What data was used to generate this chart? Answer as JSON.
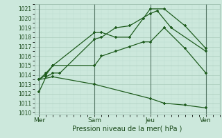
{
  "title": "Pression niveau de la mer( hPa )",
  "bg_color": "#cce8dc",
  "grid_color_major": "#aaccbb",
  "grid_color_minor": "#bbddd0",
  "line_color": "#1e5c1e",
  "ylim": [
    1009.8,
    1021.5
  ],
  "yticks": [
    1010,
    1011,
    1012,
    1013,
    1014,
    1015,
    1016,
    1017,
    1018,
    1019,
    1020,
    1021
  ],
  "xtick_labels": [
    "Mer",
    "Sam",
    "Jeu",
    "Ven"
  ],
  "xtick_positions": [
    0,
    24,
    48,
    72
  ],
  "vline_positions": [
    0,
    24,
    48,
    72
  ],
  "series": [
    {
      "x": [
        0,
        3,
        6,
        9,
        24,
        27,
        33,
        39,
        48,
        51,
        57,
        72
      ],
      "y": [
        1012.2,
        1013.8,
        1014.2,
        1014.2,
        1017.8,
        1018.0,
        1019.0,
        1019.2,
        1020.5,
        1020.8,
        1019.0,
        1016.5
      ]
    },
    {
      "x": [
        0,
        3,
        6,
        24,
        27,
        33,
        39,
        45,
        48,
        54,
        63,
        72
      ],
      "y": [
        1013.5,
        1014.2,
        1015.0,
        1018.5,
        1018.5,
        1018.0,
        1018.0,
        1020.0,
        1021.0,
        1021.0,
        1019.2,
        1016.8
      ]
    },
    {
      "x": [
        0,
        3,
        6,
        24,
        27,
        33,
        39,
        45,
        48,
        54,
        63,
        72
      ],
      "y": [
        1013.5,
        1014.0,
        1015.0,
        1015.0,
        1016.0,
        1016.5,
        1017.0,
        1017.5,
        1017.5,
        1019.0,
        1016.8,
        1014.2
      ]
    },
    {
      "x": [
        0,
        6,
        24,
        48,
        54,
        63,
        72
      ],
      "y": [
        1013.5,
        1013.8,
        1013.0,
        1011.5,
        1011.0,
        1010.8,
        1010.5
      ]
    }
  ]
}
